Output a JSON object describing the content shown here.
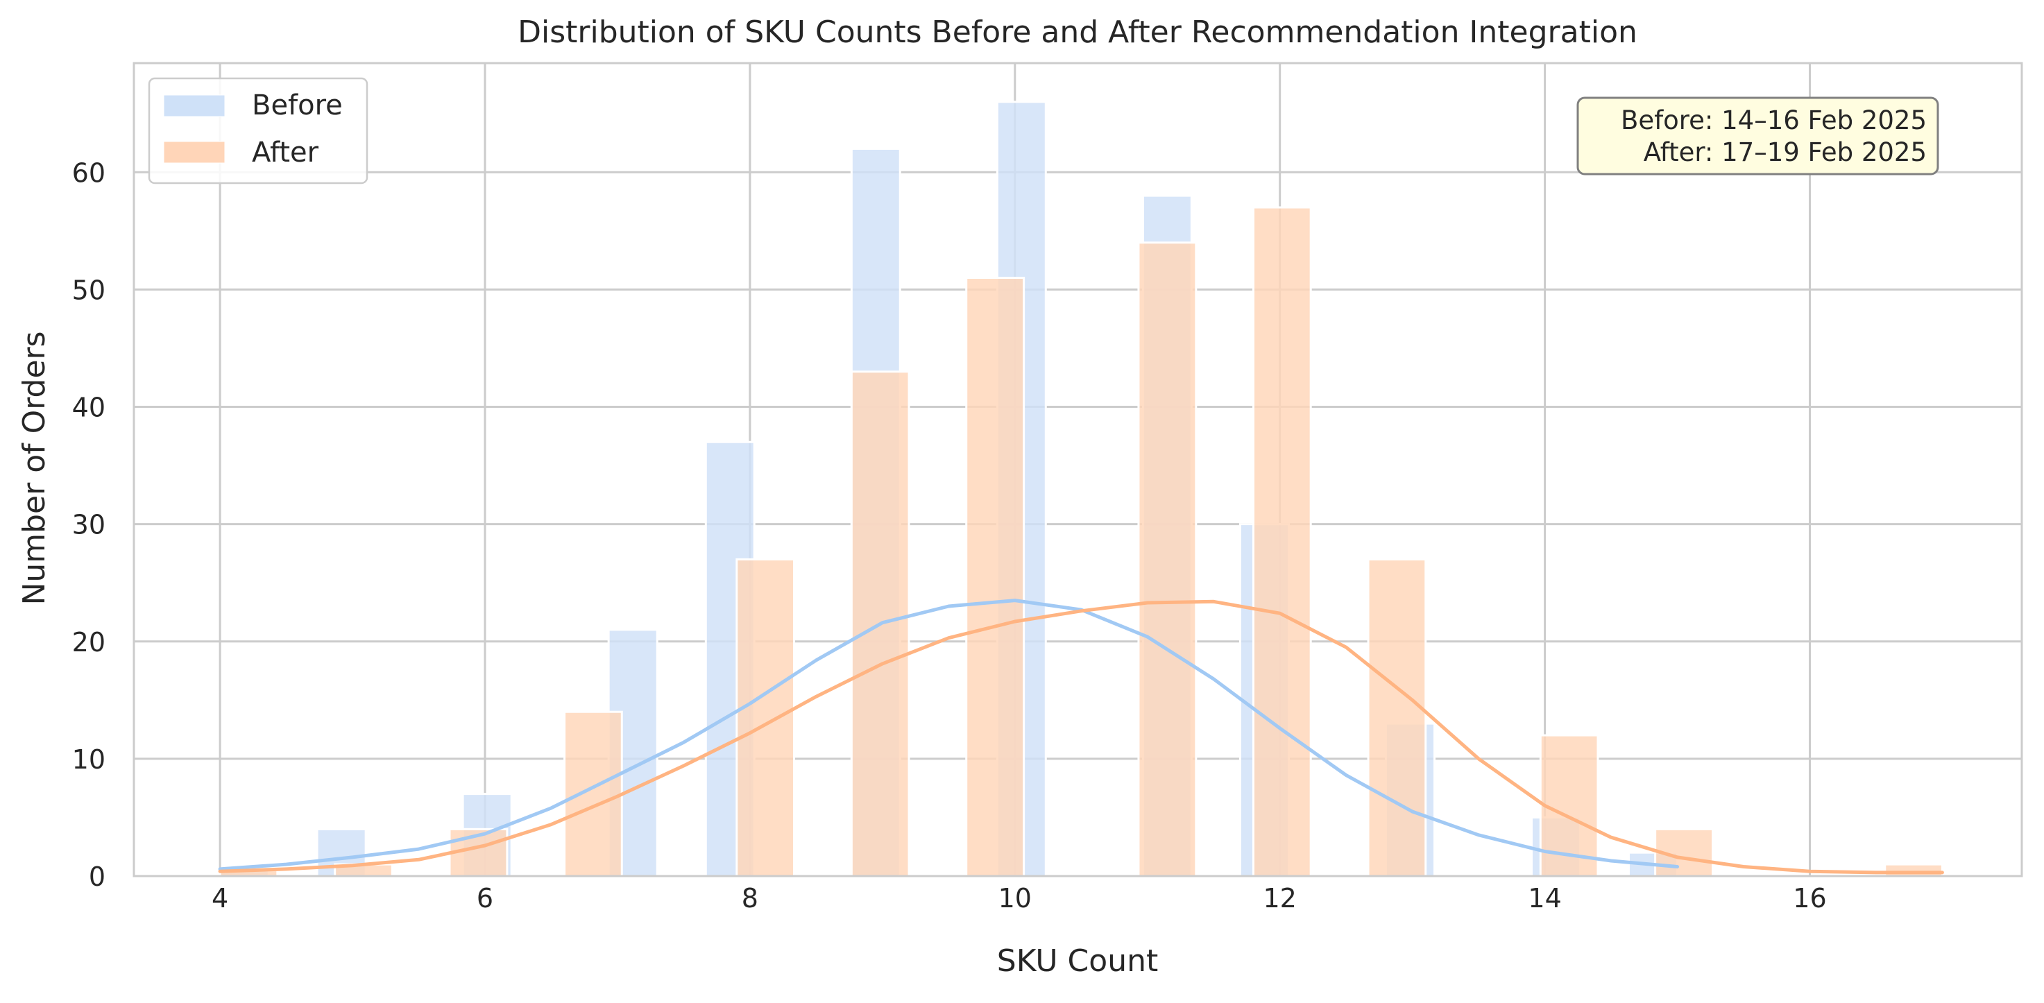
{
  "chart_data": {
    "type": "bar",
    "title": "Distribution of SKU Counts Before and After Recommendation Integration",
    "xlabel": "SKU Count",
    "ylabel": "Number of Orders",
    "xlim": [
      3.35,
      17.6
    ],
    "ylim": [
      0,
      69.3
    ],
    "xticks": [
      "4",
      "6",
      "8",
      "10",
      "12",
      "14",
      "16"
    ],
    "yticks": [
      "0",
      "10",
      "20",
      "30",
      "40",
      "50",
      "60"
    ],
    "grid": true,
    "legend_position": "top-left",
    "annotation": {
      "line1": "Before: 14–16 Feb 2025",
      "line2": "After: 17–19 Feb 2025",
      "position": "top-right"
    },
    "series": [
      {
        "name": "Before",
        "color": "#a1c9f4",
        "bar_color": "#cfe1f8",
        "bins": [
          {
            "x0": 4.0,
            "x1": 4.367,
            "value": 0.5
          },
          {
            "x0": 4.733,
            "x1": 5.1,
            "value": 4
          },
          {
            "x0": 5.833,
            "x1": 6.2,
            "value": 7
          },
          {
            "x0": 6.933,
            "x1": 7.3,
            "value": 21
          },
          {
            "x0": 7.667,
            "x1": 8.033,
            "value": 37
          },
          {
            "x0": 8.767,
            "x1": 9.133,
            "value": 62
          },
          {
            "x0": 9.867,
            "x1": 10.233,
            "value": 66
          },
          {
            "x0": 10.967,
            "x1": 11.333,
            "value": 58
          },
          {
            "x0": 11.7,
            "x1": 12.067,
            "value": 30
          },
          {
            "x0": 12.8,
            "x1": 13.167,
            "value": 13
          },
          {
            "x0": 13.9,
            "x1": 14.267,
            "value": 5
          },
          {
            "x0": 14.633,
            "x1": 15.0,
            "value": 2
          }
        ],
        "kde": {
          "x": [
            4.0,
            4.5,
            5.0,
            5.5,
            6.0,
            6.5,
            7.0,
            7.5,
            8.0,
            8.5,
            9.0,
            9.5,
            10.0,
            10.5,
            11.0,
            11.5,
            12.0,
            12.5,
            13.0,
            13.5,
            14.0,
            14.5,
            15.0
          ],
          "y": [
            0.6,
            1.0,
            1.6,
            2.3,
            3.6,
            5.8,
            8.6,
            11.4,
            14.7,
            18.4,
            21.6,
            23.0,
            23.5,
            22.7,
            20.4,
            16.8,
            12.6,
            8.6,
            5.5,
            3.5,
            2.1,
            1.3,
            0.8
          ]
        }
      },
      {
        "name": "After",
        "color": "#ffb482",
        "bar_color": "#ffd5b8",
        "bins": [
          {
            "x0": 4.0,
            "x1": 4.433,
            "value": 0.5
          },
          {
            "x0": 4.867,
            "x1": 5.3,
            "value": 1
          },
          {
            "x0": 5.733,
            "x1": 6.167,
            "value": 4
          },
          {
            "x0": 6.6,
            "x1": 7.033,
            "value": 14
          },
          {
            "x0": 7.9,
            "x1": 8.333,
            "value": 27
          },
          {
            "x0": 8.767,
            "x1": 9.2,
            "value": 43
          },
          {
            "x0": 9.633,
            "x1": 10.067,
            "value": 51
          },
          {
            "x0": 10.933,
            "x1": 11.367,
            "value": 54
          },
          {
            "x0": 11.8,
            "x1": 12.233,
            "value": 57
          },
          {
            "x0": 12.667,
            "x1": 13.1,
            "value": 27
          },
          {
            "x0": 13.967,
            "x1": 14.4,
            "value": 12
          },
          {
            "x0": 14.833,
            "x1": 15.267,
            "value": 4
          },
          {
            "x0": 16.567,
            "x1": 17.0,
            "value": 1
          }
        ],
        "kde": {
          "x": [
            4.0,
            4.5,
            5.0,
            5.5,
            6.0,
            6.5,
            7.0,
            7.5,
            8.0,
            8.5,
            9.0,
            9.5,
            10.0,
            10.5,
            11.0,
            11.5,
            12.0,
            12.5,
            13.0,
            13.5,
            14.0,
            14.5,
            15.0,
            15.5,
            16.0,
            16.5,
            17.0
          ],
          "y": [
            0.4,
            0.6,
            0.9,
            1.4,
            2.6,
            4.4,
            6.8,
            9.4,
            12.2,
            15.3,
            18.1,
            20.3,
            21.7,
            22.6,
            23.3,
            23.4,
            22.4,
            19.5,
            15.0,
            10.0,
            6.0,
            3.3,
            1.6,
            0.8,
            0.4,
            0.3,
            0.3
          ]
        }
      }
    ]
  }
}
